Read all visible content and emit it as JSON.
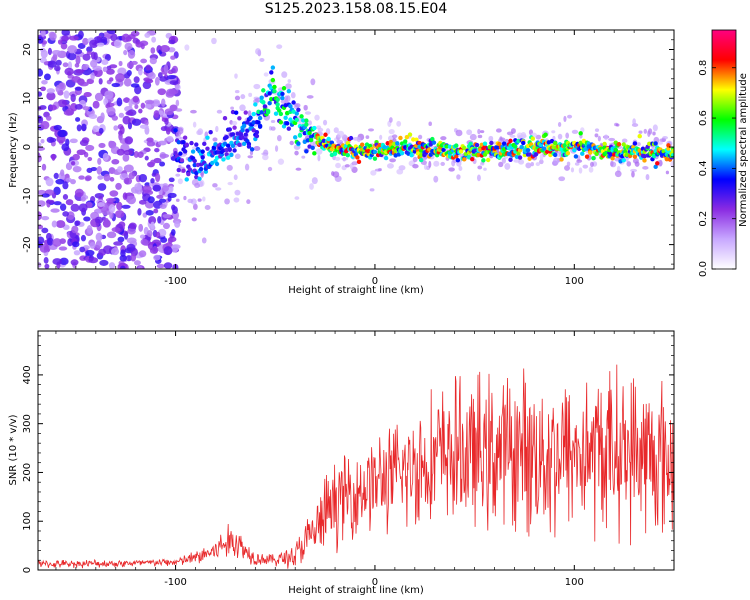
{
  "title": "S125.2023.158.08.15.E04",
  "chart_data": [
    {
      "type": "heatmap",
      "xlabel": "Height of straight line (km)",
      "ylabel": "Frequency (Hz)",
      "xlim": [
        -169,
        150
      ],
      "ylim": [
        -25,
        24
      ],
      "xticks": [
        -100,
        0,
        100
      ],
      "yticks": [
        -20,
        -10,
        0,
        10,
        20
      ],
      "ridge": {
        "x": [
          -100,
          -90,
          -80,
          -70,
          -60,
          -52,
          -45,
          -38,
          -30,
          -20,
          0,
          20,
          40,
          60,
          80,
          100,
          120,
          140,
          150
        ],
        "y": [
          -1.5,
          -3,
          -2,
          3,
          5,
          11,
          7,
          4,
          2,
          0,
          -1,
          0,
          -1,
          -1,
          0,
          0,
          -1,
          -1,
          -1
        ]
      },
      "colorbar": {
        "label": "Normalized spectral amplitude",
        "ticks": [
          0.0,
          0.2,
          0.4,
          0.6,
          0.8
        ],
        "range": [
          0,
          0.95
        ],
        "colors": [
          "#ffffff",
          "#c8a8ff",
          "#8a2be2",
          "#0000ff",
          "#00ffff",
          "#00ff00",
          "#ffff00",
          "#ff0000",
          "#ff0080"
        ]
      }
    },
    {
      "type": "line",
      "xlabel": "Height of straight line (km)",
      "ylabel": "SNR (10 * v/v)",
      "xlim": [
        -169,
        150
      ],
      "ylim": [
        0,
        490
      ],
      "xticks": [
        -100,
        0,
        100
      ],
      "yticks": [
        0,
        100,
        200,
        300,
        400
      ],
      "color": "#e8282a",
      "envelope": {
        "x": [
          -169,
          -120,
          -100,
          -90,
          -80,
          -75,
          -70,
          -65,
          -60,
          -50,
          -40,
          -30,
          -25,
          -20,
          -10,
          0,
          10,
          20,
          30,
          40,
          50,
          60,
          70,
          80,
          90,
          100,
          110,
          120,
          130,
          140,
          150
        ],
        "mean": [
          12,
          14,
          16,
          25,
          40,
          55,
          60,
          40,
          25,
          20,
          30,
          80,
          110,
          140,
          160,
          180,
          190,
          210,
          230,
          240,
          235,
          240,
          245,
          240,
          235,
          240,
          240,
          245,
          240,
          230,
          220
        ],
        "spread": [
          8,
          8,
          8,
          15,
          25,
          35,
          40,
          25,
          15,
          12,
          30,
          60,
          80,
          90,
          90,
          100,
          110,
          130,
          140,
          150,
          160,
          160,
          160,
          170,
          170,
          160,
          170,
          170,
          170,
          170,
          160
        ]
      }
    }
  ]
}
